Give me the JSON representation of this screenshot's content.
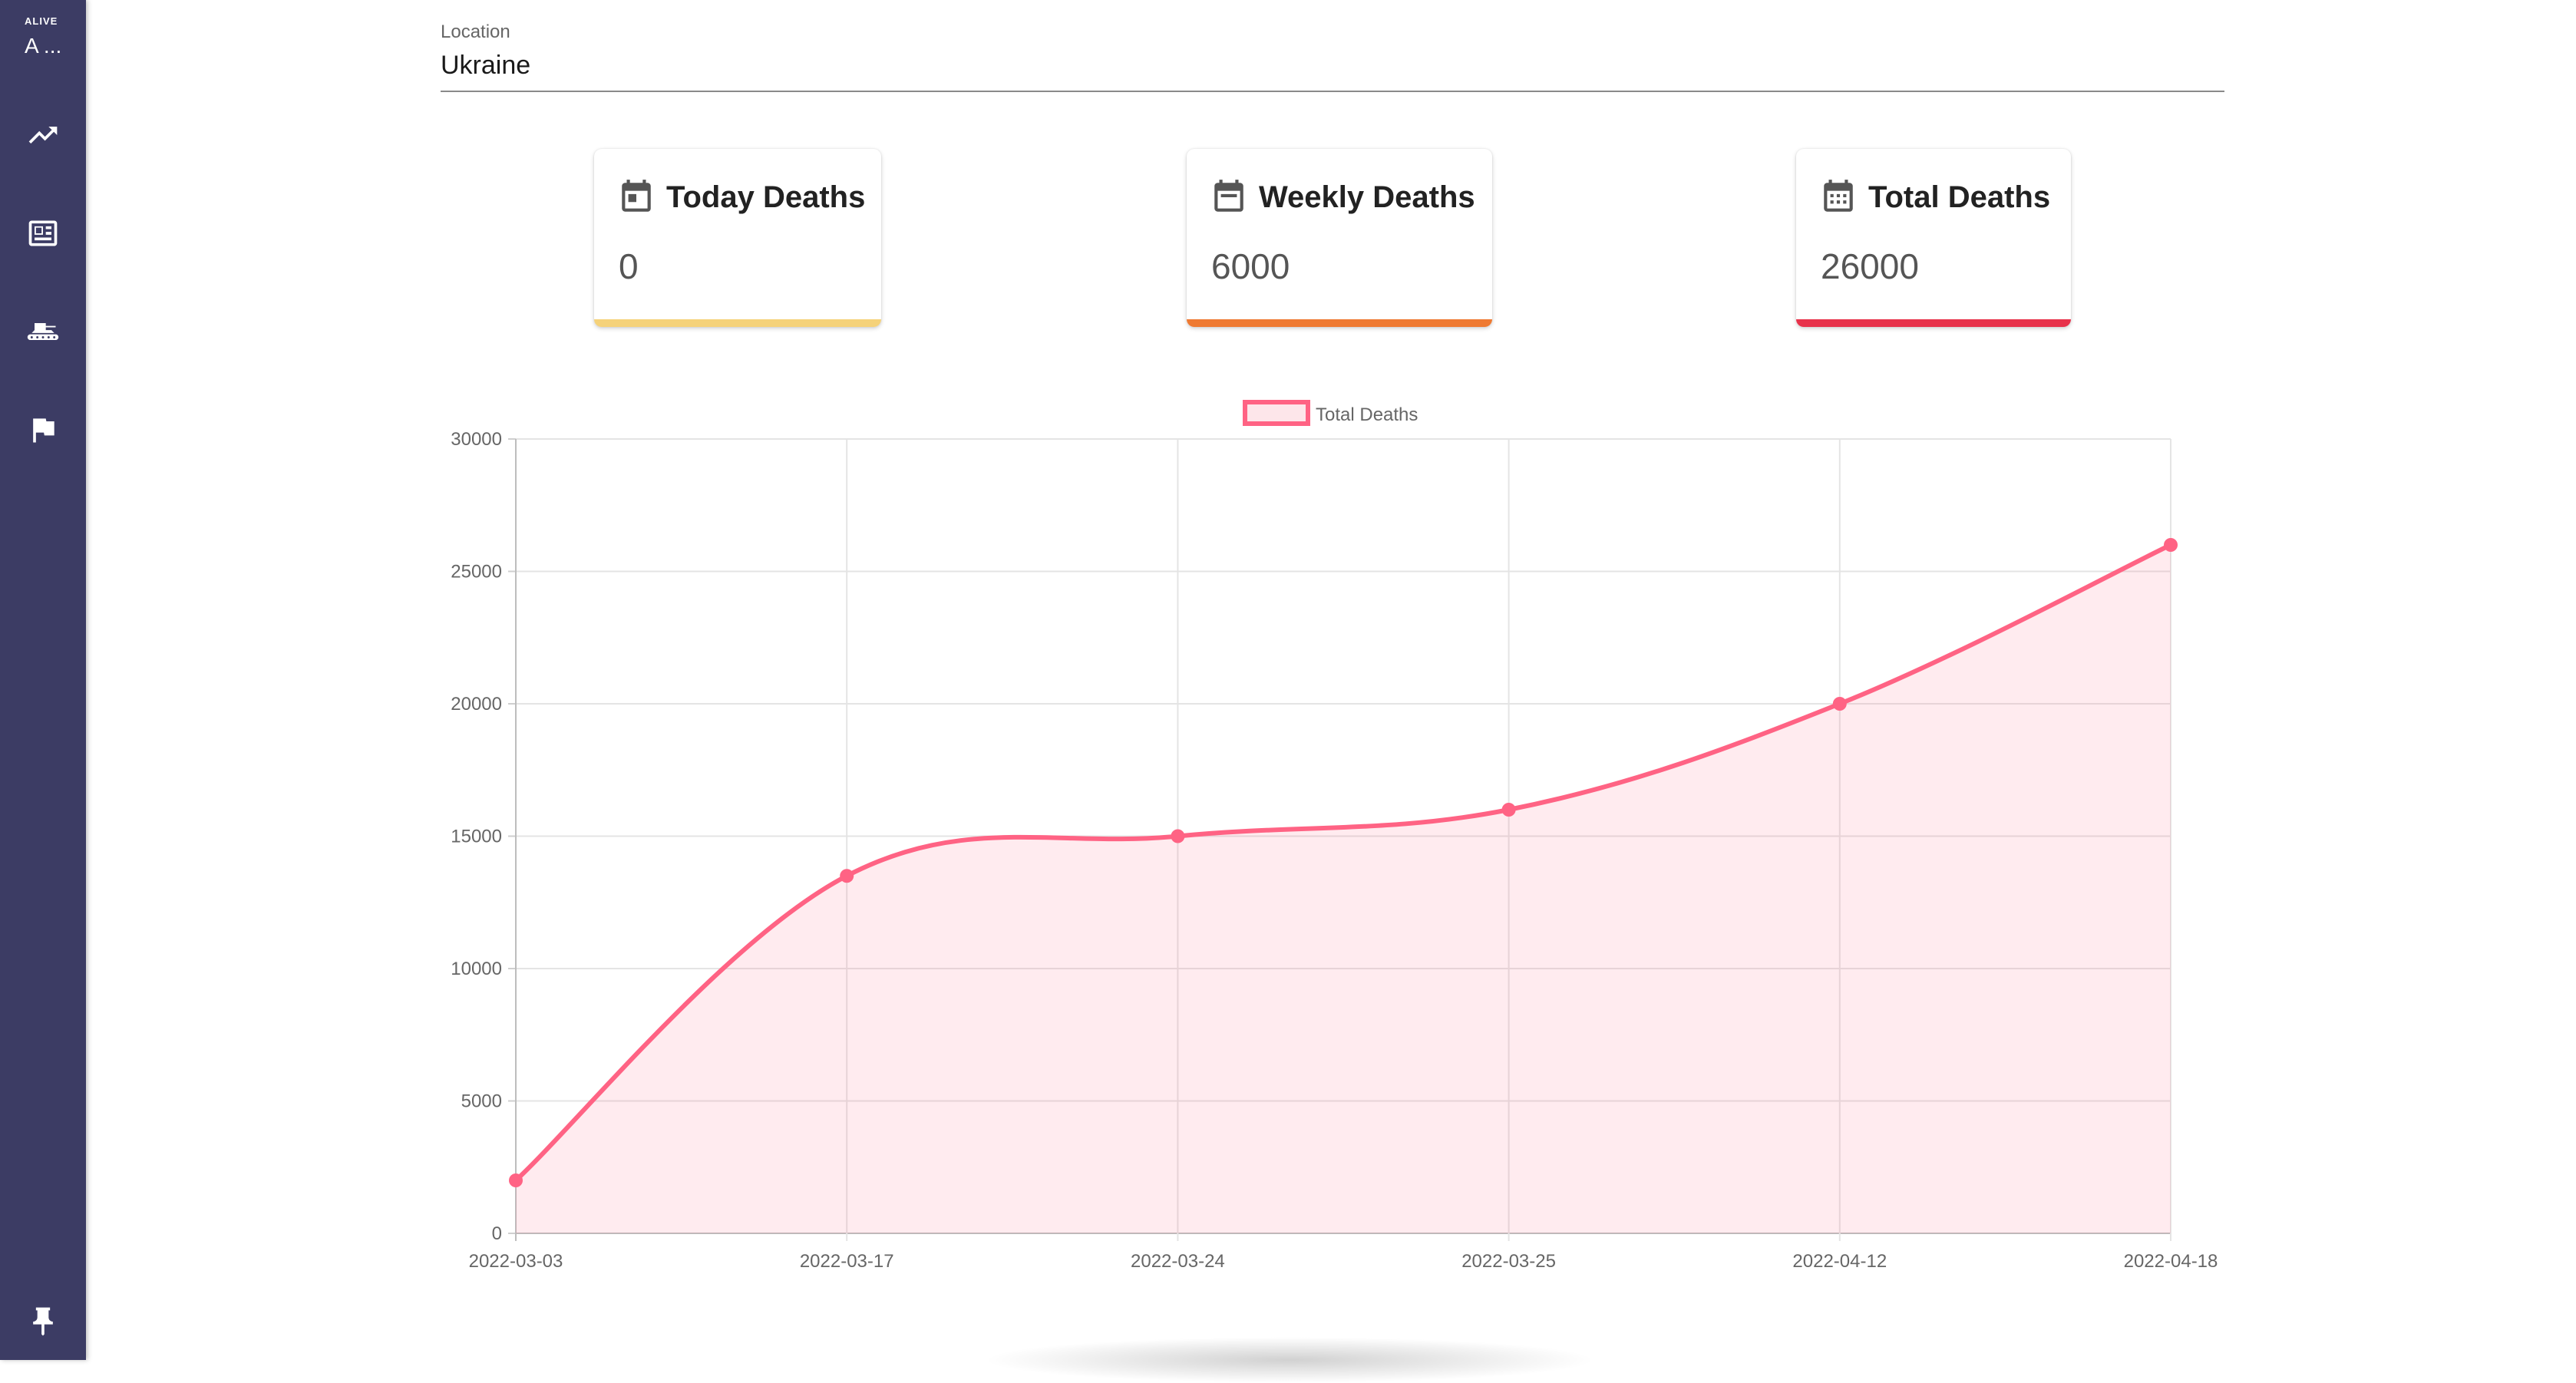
{
  "sidebar": {
    "brand_small": "ALIVE",
    "brand_short": "A ...",
    "items": [
      {
        "icon": "trending-up-icon"
      },
      {
        "icon": "newspaper-icon"
      },
      {
        "icon": "tank-icon"
      },
      {
        "icon": "flag-icon"
      }
    ],
    "pin_icon": "pin-icon"
  },
  "location": {
    "label": "Location",
    "value": "Ukraine"
  },
  "cards": [
    {
      "title": "Today Deaths",
      "value": "0",
      "icon": "calendar-today-icon",
      "color": "#f5d27a"
    },
    {
      "title": "Weekly Deaths",
      "value": "6000",
      "icon": "calendar-week-icon",
      "color": "#ef7a32"
    },
    {
      "title": "Total Deaths",
      "value": "26000",
      "icon": "calendar-month-icon",
      "color": "#e8324b"
    }
  ],
  "chart_data": {
    "type": "area",
    "x": [
      "2022-03-03",
      "2022-03-17",
      "2022-03-24",
      "2022-03-25",
      "2022-04-12",
      "2022-04-18"
    ],
    "series": [
      {
        "name": "Total Deaths",
        "values": [
          2000,
          13500,
          15000,
          16000,
          20000,
          26000
        ],
        "color": "#ff6384"
      }
    ],
    "ylim": [
      0,
      30000
    ],
    "yticks": [
      0,
      5000,
      10000,
      15000,
      20000,
      25000,
      30000
    ],
    "grid": true,
    "legend": "top-center"
  }
}
